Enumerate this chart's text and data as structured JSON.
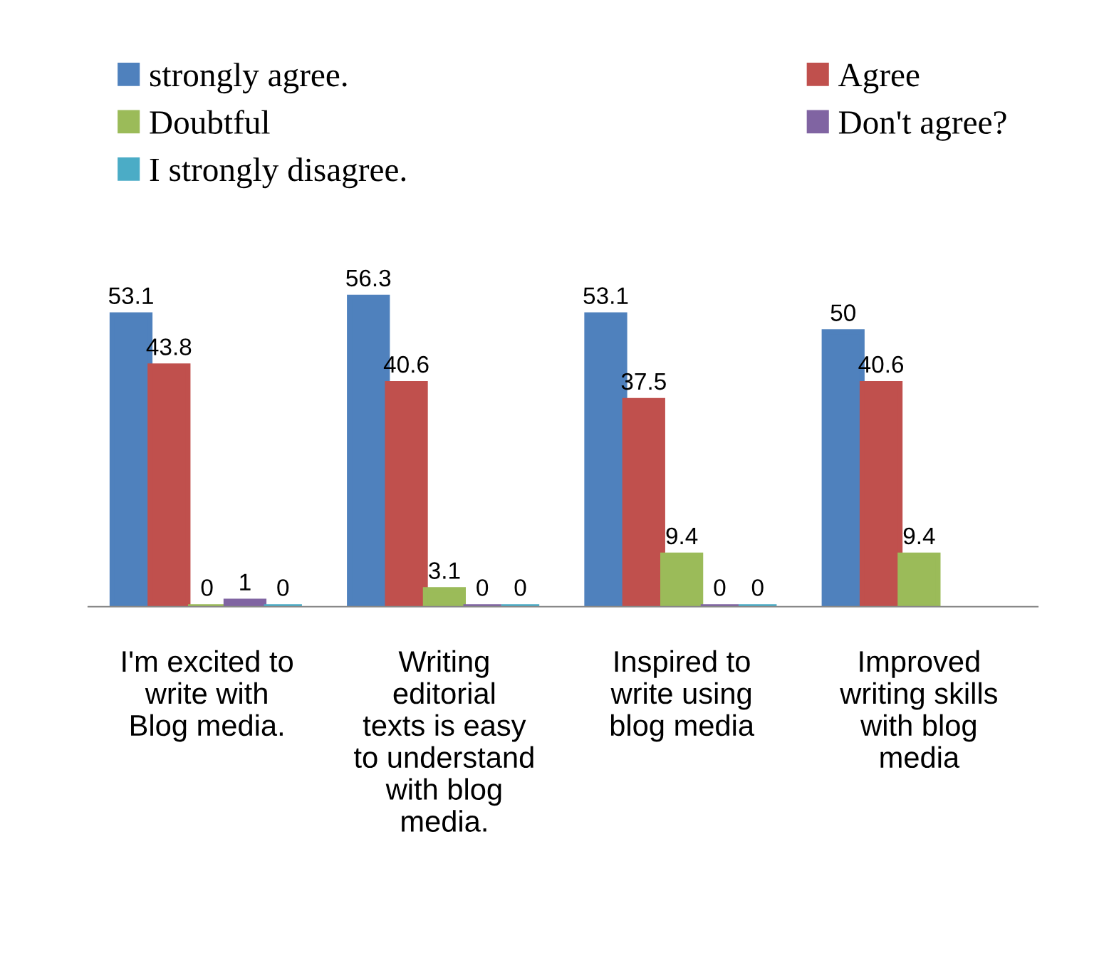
{
  "chart_data": {
    "type": "bar",
    "categories": [
      "I'm excited to write with Blog media.",
      "Writing editorial texts is easy to understand with blog media.",
      "Inspired to write using blog media",
      "Improved writing skills with blog media"
    ],
    "series": [
      {
        "name": "strongly agree.",
        "color": "#4f81bd",
        "values": [
          53.1,
          56.3,
          53.1,
          50
        ]
      },
      {
        "name": "Agree",
        "color": "#c0504d",
        "values": [
          43.8,
          40.6,
          37.5,
          40.6
        ]
      },
      {
        "name": "Doubtful",
        "color": "#9bbb59",
        "values": [
          0,
          3.1,
          9.4,
          9.4
        ]
      },
      {
        "name": "Don't agree?",
        "color": "#8064a2",
        "values": [
          1,
          0,
          0,
          null
        ]
      },
      {
        "name": "I strongly disagree.",
        "color": "#4bacc6",
        "values": [
          0,
          0,
          0,
          null
        ]
      }
    ],
    "data_labels": true,
    "legend": "top",
    "grid": false
  }
}
